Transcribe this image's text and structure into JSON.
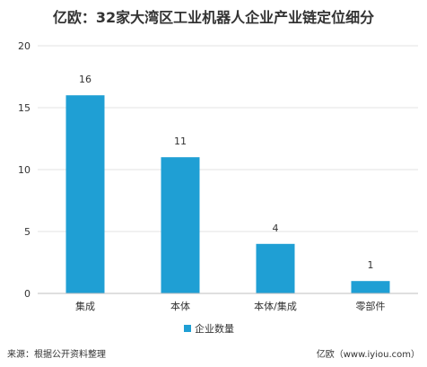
{
  "chart_data": {
    "type": "bar",
    "title": "亿欧：32家大湾区工业机器人企业产业链定位细分",
    "categories": [
      "集成",
      "本体",
      "本体/集成",
      "零部件"
    ],
    "series": [
      {
        "name": "企业数量",
        "values": [
          16,
          11,
          4,
          1
        ],
        "color": "#1f9fd4"
      }
    ],
    "ylim": [
      0,
      20
    ],
    "yticks": [
      0,
      5,
      10,
      15,
      20
    ],
    "xlabel": "",
    "ylabel": "",
    "grid": true,
    "legend": "bottom-center",
    "data_labels": true
  },
  "footer": {
    "source": "来源：根据公开资料整理",
    "brand": "亿欧（www.iyiou.com）"
  }
}
